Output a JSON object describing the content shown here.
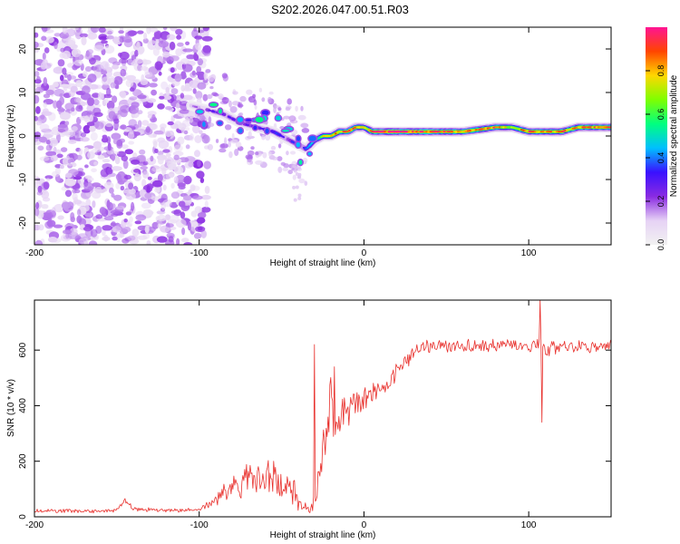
{
  "title": "S202.2026.047.00.51.R03",
  "chart_data": [
    {
      "type": "heatmap",
      "xlabel": "Height of straight line (km)",
      "ylabel": "Frequency (Hz)",
      "xlim": [
        -200,
        150
      ],
      "ylim": [
        -25,
        25
      ],
      "xticks": [
        -200,
        -100,
        0,
        100
      ],
      "xtick_labels": [
        "-200",
        "-100",
        "0",
        "100"
      ],
      "yticks": [
        -20,
        -10,
        0,
        10,
        20
      ],
      "ytick_labels": [
        "-20",
        "-10",
        "0",
        "10",
        "20"
      ],
      "colorbar": {
        "label": "Normalized spectral amplitude",
        "range": [
          0,
          1
        ],
        "ticks": [
          0,
          0.2,
          0.4,
          0.6,
          0.8
        ],
        "tick_labels": [
          "0.0",
          "0.2",
          "0.4",
          "0.6",
          "0.8"
        ],
        "colors": [
          "#f2f2f2",
          "#e6d2f5",
          "#8a2be2",
          "#3a10ff",
          "#00bfff",
          "#00ff7f",
          "#7fff00",
          "#ffd700",
          "#ff4500",
          "#ff1493"
        ]
      },
      "ridge": {
        "x": [
          -105,
          -95,
          -85,
          -75,
          -65,
          -55,
          -45,
          -40,
          -35,
          -30,
          -25,
          -20,
          -15,
          -10,
          -5,
          0,
          5,
          10,
          20,
          40,
          60,
          80,
          90,
          100,
          110,
          120,
          130,
          140,
          150
        ],
        "freq": [
          7,
          6,
          5,
          3,
          2,
          1,
          -1,
          -2,
          -3,
          -1,
          0,
          0,
          1,
          1,
          2,
          2,
          1,
          1,
          1,
          1,
          1,
          2,
          2,
          1,
          1,
          1,
          2,
          2,
          2
        ],
        "amplitude": [
          0.15,
          0.25,
          0.3,
          0.3,
          0.3,
          0.35,
          0.3,
          0.35,
          0.4,
          0.55,
          0.7,
          0.75,
          0.8,
          0.85,
          0.85,
          0.7,
          0.9,
          0.95,
          0.95,
          0.9,
          0.85,
          0.85,
          0.7,
          0.85,
          0.8,
          0.85,
          0.85,
          0.85,
          0.85
        ]
      }
    },
    {
      "type": "line",
      "xlabel": "Height of straight line (km)",
      "ylabel": "SNR (10 * v/v)",
      "xlim": [
        -200,
        150
      ],
      "ylim": [
        0,
        780
      ],
      "xticks": [
        -200,
        -100,
        0,
        100
      ],
      "xtick_labels": [
        "-200",
        "-100",
        "0",
        "100"
      ],
      "yticks": [
        0,
        200,
        400,
        600
      ],
      "ytick_labels": [
        "0",
        "200",
        "400",
        "600"
      ],
      "color": "#e8302c",
      "series": [
        {
          "name": "SNR",
          "x": [
            -200,
            -180,
            -160,
            -150,
            -145,
            -140,
            -120,
            -100,
            -90,
            -80,
            -70,
            -60,
            -50,
            -45,
            -40,
            -35,
            -30,
            -25,
            -22,
            -20,
            -18,
            -15,
            -10,
            -5,
            0,
            5,
            10,
            15,
            20,
            25,
            30,
            35,
            40,
            50,
            60,
            80,
            100,
            108,
            110,
            120,
            130,
            140,
            150
          ],
          "y": [
            20,
            22,
            20,
            25,
            60,
            28,
            22,
            25,
            60,
            110,
            140,
            150,
            130,
            120,
            60,
            30,
            50,
            200,
            350,
            420,
            300,
            360,
            380,
            400,
            420,
            450,
            470,
            480,
            520,
            560,
            590,
            610,
            615,
            615,
            615,
            615,
            615,
            620,
            600,
            610,
            615,
            610,
            612
          ],
          "noise": [
            12,
            12,
            12,
            12,
            20,
            12,
            12,
            12,
            40,
            80,
            100,
            110,
            100,
            110,
            80,
            40,
            80,
            150,
            180,
            180,
            150,
            100,
            110,
            110,
            100,
            90,
            80,
            60,
            60,
            50,
            40,
            40,
            40,
            40,
            40,
            40,
            40,
            40,
            40,
            40,
            40,
            40,
            40
          ]
        }
      ],
      "spikes": [
        {
          "x": -30,
          "y": 620
        },
        {
          "x": -18,
          "y": 540
        },
        {
          "x": 107,
          "y": 780
        },
        {
          "x": 108,
          "y": 340
        }
      ]
    }
  ]
}
